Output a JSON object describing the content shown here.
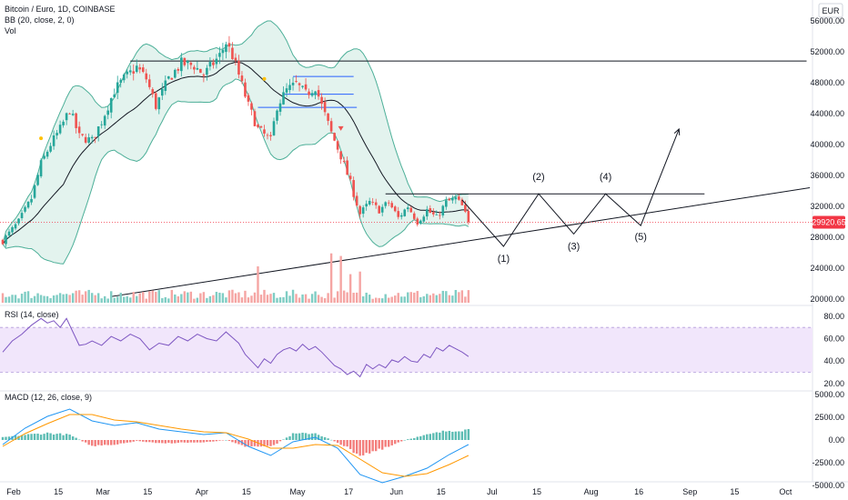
{
  "header": {
    "symbol_line": "Bitcoin / Euro, 1D, COINBASE",
    "bb_label": "BB (20, close, 2, 0)",
    "vol_label": "Vol",
    "currency_badge": "EUR",
    "last_price_badge": "29920.65"
  },
  "colors": {
    "up": "#26a69a",
    "down": "#ef5350",
    "vol_up": "#7fcdc4",
    "vol_down": "#f5a5a3",
    "bb_fill": "#e0f2ec",
    "bb_line": "#4caf98",
    "basis": "#131722",
    "rsi": "#7e57c2",
    "rsi_band": "#f1e6fb",
    "macd": "#2196f3",
    "signal": "#ff9800",
    "price_line": "#f23645",
    "markers": "#ffc107"
  },
  "chart_data": [
    {
      "type": "candlestick",
      "title": "Bitcoin / Euro, 1D, COINBASE",
      "ylim": [
        19500,
        58000
      ],
      "y_ticks": [
        20000,
        24000,
        28000,
        32000,
        36000,
        40000,
        44000,
        48000,
        52000,
        56000
      ],
      "y_tick_labels": [
        "20000.00",
        "24000.00",
        "28000.00",
        "32000.00",
        "36000.00",
        "40000.00",
        "44000.00",
        "48000.00",
        "52000.00",
        "56000.00"
      ],
      "x_tick_labels": [
        "Feb",
        "15",
        "Mar",
        "15",
        "Apr",
        "15",
        "May",
        "17",
        "Jun",
        "15",
        "Jul",
        "15",
        "Aug",
        "16",
        "Sep",
        "15",
        "Oct"
      ],
      "x_tick_days": [
        0,
        14,
        28,
        42,
        59,
        73,
        89,
        105,
        120,
        134,
        150,
        164,
        181,
        196,
        212,
        226,
        242
      ],
      "x_range_days": [
        0,
        253
      ],
      "last_price": 29920.65,
      "close_anchors": [
        [
          0,
          27500
        ],
        [
          5,
          30000
        ],
        [
          9,
          33000
        ],
        [
          12,
          37500
        ],
        [
          15,
          40000
        ],
        [
          18,
          42000
        ],
        [
          21,
          44500
        ],
        [
          24,
          41000
        ],
        [
          28,
          40500
        ],
        [
          31,
          43000
        ],
        [
          35,
          47000
        ],
        [
          38,
          48500
        ],
        [
          42,
          50000
        ],
        [
          45,
          48500
        ],
        [
          48,
          45000
        ],
        [
          52,
          48500
        ],
        [
          56,
          50500
        ],
        [
          60,
          50200
        ],
        [
          63,
          49000
        ],
        [
          66,
          50500
        ],
        [
          68,
          51500
        ],
        [
          70,
          53200
        ],
        [
          72,
          51500
        ],
        [
          74,
          49000
        ],
        [
          77,
          45000
        ],
        [
          80,
          42000
        ],
        [
          84,
          40500
        ],
        [
          86,
          45000
        ],
        [
          89,
          47000
        ],
        [
          92,
          47800
        ],
        [
          95,
          46500
        ],
        [
          98,
          47500
        ],
        [
          100,
          45000
        ],
        [
          103,
          41500
        ],
        [
          106,
          38500
        ],
        [
          109,
          35000
        ],
        [
          112,
          31000
        ],
        [
          115,
          32500
        ],
        [
          118,
          31500
        ],
        [
          121,
          32500
        ],
        [
          124,
          30500
        ],
        [
          127,
          32000
        ],
        [
          130,
          30000
        ],
        [
          133,
          31500
        ],
        [
          136,
          30500
        ],
        [
          139,
          32500
        ],
        [
          142,
          33000
        ],
        [
          144,
          32000
        ],
        [
          146,
          29920
        ]
      ],
      "volume_range": [
        0,
        42000
      ],
      "events": [
        {
          "day": 103,
          "volume": 38000
        },
        {
          "day": 106,
          "volume": 36000
        },
        {
          "day": 80,
          "volume": 28000
        },
        {
          "day": 112,
          "volume": 24000
        },
        {
          "day": 109,
          "volume": 22000
        }
      ],
      "dot_markers": [
        {
          "day": 12,
          "price": 40800
        },
        {
          "day": 82,
          "price": 48500
        }
      ],
      "down_triangle": {
        "day": 106,
        "price": 42000
      },
      "annotations": {
        "resistance_top": {
          "x_days": [
            40,
            252
          ],
          "price": 50800
        },
        "box_lines": [
          {
            "x_days": [
              91,
              110
            ],
            "price": 48800
          },
          {
            "x_days": [
              88,
              110
            ],
            "price": 46500
          },
          {
            "x_days": [
              80,
              111
            ],
            "price": 44800
          }
        ],
        "range_top": {
          "x_days": [
            120,
            220
          ],
          "price": 33600
        },
        "support_trendline": {
          "from": [
            34,
            20300
          ],
          "to": [
            253,
            34400
          ]
        },
        "projection_path": [
          [
            144,
            32800
          ],
          [
            157,
            26800
          ],
          [
            168,
            33600
          ],
          [
            179,
            28400
          ],
          [
            189,
            33600
          ],
          [
            200,
            29500
          ],
          [
            212,
            42000
          ]
        ],
        "wave_labels": [
          {
            "text": "(1)",
            "day": 157,
            "price": 24800
          },
          {
            "text": "(2)",
            "day": 168,
            "price": 35400
          },
          {
            "text": "(3)",
            "day": 179,
            "price": 26400
          },
          {
            "text": "(4)",
            "day": 189,
            "price": 35400
          },
          {
            "text": "(5)",
            "day": 200,
            "price": 27600
          }
        ]
      },
      "indicators": {
        "bollinger_period": 20,
        "bollinger_mult": 2
      }
    },
    {
      "type": "line",
      "title": "RSI (14, close)",
      "ylim": [
        15,
        88
      ],
      "band": [
        30,
        70
      ],
      "y_tick_labels": [
        "80.00",
        "60.00",
        "40.00",
        "20.00"
      ],
      "y_ticks": [
        80,
        60,
        40,
        20
      ],
      "x": [
        0,
        3,
        6,
        9,
        12,
        14,
        16,
        18,
        20,
        22,
        24,
        26,
        28,
        31,
        34,
        37,
        40,
        43,
        46,
        49,
        52,
        55,
        58,
        61,
        64,
        67,
        70,
        72,
        74,
        76,
        78,
        80,
        82,
        84,
        86,
        88,
        90,
        92,
        94,
        96,
        98,
        100,
        102,
        104,
        106,
        108,
        110,
        112,
        114,
        116,
        118,
        120,
        122,
        124,
        126,
        128,
        130,
        132,
        134,
        136,
        138,
        140,
        142,
        144,
        146
      ],
      "values": [
        48,
        58,
        64,
        72,
        78,
        74,
        76,
        70,
        78,
        66,
        54,
        55,
        58,
        54,
        62,
        58,
        64,
        60,
        50,
        56,
        54,
        62,
        58,
        64,
        60,
        58,
        66,
        61,
        56,
        46,
        40,
        34,
        42,
        38,
        46,
        50,
        52,
        49,
        55,
        50,
        53,
        48,
        42,
        36,
        33,
        28,
        31,
        26,
        37,
        33,
        37,
        34,
        41,
        39,
        44,
        40,
        39,
        46,
        43,
        52,
        49,
        54,
        51,
        48,
        44
      ]
    },
    {
      "type": "line",
      "title": "MACD (12, 26, close, 9)",
      "ylim": [
        -5600,
        5400
      ],
      "y_tick_labels": [
        "5000.00",
        "2500.00",
        "0.00",
        "-2500.00",
        "-5000.00"
      ],
      "y_ticks": [
        5000,
        2500,
        0,
        -2500,
        -5000
      ],
      "x": [
        0,
        7,
        14,
        21,
        28,
        35,
        42,
        49,
        56,
        63,
        70,
        77,
        84,
        91,
        98,
        105,
        112,
        119,
        126,
        133,
        140,
        146
      ],
      "series": [
        {
          "name": "MACD",
          "values": [
            -500,
            1300,
            2600,
            3400,
            2100,
            1600,
            1900,
            1200,
            900,
            600,
            800,
            -700,
            -1700,
            -200,
            300,
            -900,
            -3800,
            -4700,
            -4000,
            -3100,
            -1600,
            -500
          ]
        },
        {
          "name": "Signal",
          "values": [
            -700,
            700,
            1800,
            2800,
            2800,
            2200,
            2000,
            1600,
            1200,
            900,
            800,
            100,
            -900,
            -900,
            -500,
            -600,
            -2100,
            -3600,
            -4000,
            -3700,
            -2700,
            -1700
          ]
        }
      ],
      "histogram": {
        "x": [
          0,
          7,
          14,
          21,
          28,
          35,
          42,
          49,
          56,
          63,
          70,
          77,
          84,
          91,
          98,
          105,
          112,
          119,
          126,
          133,
          140,
          146
        ],
        "values": [
          300,
          600,
          800,
          600,
          -700,
          -600,
          -100,
          -400,
          -300,
          -300,
          0,
          -800,
          -800,
          700,
          800,
          -300,
          -1700,
          -1100,
          0,
          600,
          1100,
          1200
        ]
      }
    }
  ]
}
